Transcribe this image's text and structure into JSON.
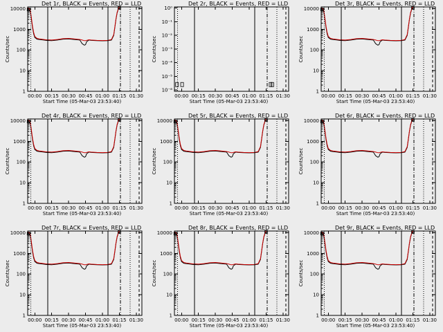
{
  "chart_data": {
    "type": "line",
    "x_tick_labels": [
      "00:00",
      "00:15",
      "00:30",
      "00:45",
      "01:00",
      "01:15",
      "01:30"
    ],
    "xlim_minutes": [
      -6.3,
      95
    ],
    "y_tick_labels": [
      "1",
      "10",
      "100",
      "1000",
      "10000"
    ],
    "ylim": [
      1,
      12000
    ],
    "ylabel": "Counts/sec",
    "xlabel": "Start Time (05-Mar-03 23:53:40)",
    "legend_black": "BLACK = Events",
    "legend_red": "RED = LLD",
    "colors": {
      "events": "#000000",
      "lld": "#cc0000"
    },
    "markers_minutes": {
      "dotted": [
        -3.5,
        84.5
      ],
      "solid": [
        11.5,
        65
      ],
      "dashdot": [
        76
      ],
      "dashed": [
        92.5
      ]
    },
    "x_minutes": [
      -6,
      -5,
      -4,
      -3,
      -2,
      -1,
      0,
      2,
      4,
      6,
      8,
      10,
      15,
      20,
      25,
      30,
      35,
      40,
      42,
      44,
      45,
      46,
      48,
      50,
      55,
      60,
      65,
      68,
      70,
      71,
      72,
      73,
      74,
      75
    ],
    "det2_note": "Det 2r shows only sparse points near bottom; y axis labeled 1e-1 ... 1e-8 style",
    "panels": [
      {
        "title": "Det 1r",
        "events": [
          9000,
          8500,
          7000,
          3000,
          1200,
          600,
          400,
          330,
          320,
          310,
          300,
          290,
          280,
          300,
          330,
          340,
          320,
          300,
          200,
          170,
          180,
          250,
          300,
          290,
          280,
          275,
          280,
          300,
          500,
          1200,
          3000,
          6000,
          9000,
          11000
        ],
        "lld": [
          11000,
          10000,
          8500,
          3500,
          1400,
          700,
          450,
          360,
          340,
          330,
          320,
          310,
          300,
          320,
          350,
          360,
          340,
          320,
          300,
          280,
          280,
          290,
          310,
          300,
          290,
          285,
          290,
          320,
          550,
          1300,
          3200,
          6500,
          9500,
          12000
        ]
      },
      {
        "title": "Det 2r",
        "events": [],
        "lld": []
      },
      {
        "title": "Det 3r",
        "events": [
          9000,
          8500,
          7000,
          3000,
          1200,
          600,
          400,
          330,
          320,
          310,
          300,
          290,
          280,
          300,
          330,
          340,
          320,
          300,
          200,
          170,
          180,
          250,
          300,
          290,
          280,
          275,
          280,
          300,
          500,
          1200,
          3000,
          6000,
          9000,
          11000
        ],
        "lld": [
          11000,
          10000,
          8500,
          3500,
          1400,
          700,
          450,
          360,
          340,
          330,
          320,
          310,
          300,
          320,
          350,
          360,
          340,
          320,
          300,
          280,
          280,
          290,
          310,
          300,
          290,
          285,
          290,
          320,
          550,
          1300,
          3200,
          6500,
          9500,
          12000
        ]
      },
      {
        "title": "Det 4r",
        "events": [
          9000,
          8500,
          7000,
          3000,
          1200,
          600,
          400,
          330,
          320,
          310,
          300,
          290,
          280,
          300,
          330,
          340,
          320,
          300,
          200,
          170,
          180,
          250,
          300,
          290,
          280,
          275,
          280,
          300,
          500,
          1200,
          3000,
          6000,
          9000,
          11000
        ],
        "lld": [
          11000,
          10000,
          8500,
          3500,
          1400,
          700,
          450,
          360,
          340,
          330,
          320,
          310,
          300,
          320,
          350,
          360,
          340,
          320,
          300,
          280,
          280,
          290,
          310,
          300,
          290,
          285,
          290,
          320,
          550,
          1300,
          3200,
          6500,
          9500,
          12000
        ]
      },
      {
        "title": "Det 5r",
        "events": [
          9000,
          8500,
          7000,
          3000,
          1200,
          600,
          400,
          330,
          320,
          310,
          300,
          290,
          280,
          300,
          330,
          340,
          320,
          300,
          200,
          170,
          180,
          250,
          300,
          290,
          280,
          275,
          280,
          300,
          500,
          1200,
          3000,
          6000,
          9000,
          11000
        ],
        "lld": [
          11000,
          10000,
          8500,
          3500,
          1400,
          700,
          450,
          360,
          340,
          330,
          320,
          310,
          300,
          320,
          350,
          360,
          340,
          320,
          300,
          280,
          280,
          290,
          310,
          300,
          290,
          285,
          290,
          320,
          550,
          1300,
          3200,
          6500,
          9500,
          12000
        ]
      },
      {
        "title": "Det 6r",
        "events": [
          9000,
          8500,
          7000,
          3000,
          1200,
          600,
          400,
          330,
          320,
          310,
          300,
          290,
          280,
          300,
          330,
          340,
          320,
          300,
          200,
          170,
          180,
          250,
          300,
          290,
          280,
          275,
          280,
          300,
          500,
          1200,
          3000,
          6000,
          9000,
          11000
        ],
        "lld": [
          11000,
          10000,
          8500,
          3500,
          1400,
          700,
          450,
          360,
          340,
          330,
          320,
          310,
          300,
          320,
          350,
          360,
          340,
          320,
          300,
          280,
          280,
          290,
          310,
          300,
          290,
          285,
          290,
          320,
          550,
          1300,
          3200,
          6500,
          9500,
          12000
        ]
      },
      {
        "title": "Det 7r",
        "events": [
          9000,
          8500,
          7000,
          3000,
          1200,
          600,
          400,
          330,
          320,
          310,
          300,
          290,
          280,
          300,
          330,
          340,
          320,
          300,
          200,
          170,
          180,
          250,
          300,
          290,
          280,
          275,
          280,
          300,
          500,
          1200,
          3000,
          6000,
          9000,
          11000
        ],
        "lld": [
          11000,
          10000,
          8500,
          3500,
          1400,
          700,
          450,
          360,
          340,
          330,
          320,
          310,
          300,
          320,
          350,
          360,
          340,
          320,
          300,
          280,
          280,
          290,
          310,
          300,
          290,
          285,
          290,
          320,
          550,
          1300,
          3200,
          6500,
          9500,
          12000
        ]
      },
      {
        "title": "Det 8r",
        "events": [
          9000,
          8500,
          7000,
          3000,
          1200,
          600,
          400,
          330,
          320,
          310,
          300,
          290,
          280,
          300,
          330,
          340,
          320,
          300,
          200,
          170,
          180,
          250,
          300,
          290,
          280,
          275,
          280,
          300,
          500,
          1200,
          3000,
          6000,
          9000,
          11000
        ],
        "lld": [
          11000,
          10000,
          8500,
          3500,
          1400,
          700,
          450,
          360,
          340,
          330,
          320,
          310,
          300,
          320,
          350,
          360,
          340,
          320,
          300,
          280,
          280,
          290,
          310,
          300,
          290,
          285,
          290,
          320,
          550,
          1300,
          3200,
          6500,
          9500,
          12000
        ]
      },
      {
        "title": "Det 9r",
        "events": [
          9000,
          8500,
          7000,
          3000,
          1200,
          600,
          400,
          330,
          320,
          310,
          300,
          290,
          280,
          300,
          330,
          340,
          320,
          300,
          200,
          170,
          180,
          250,
          300,
          290,
          280,
          275,
          280,
          300,
          500,
          1200,
          3000,
          6000,
          9000,
          11000
        ],
        "lld": [
          11000,
          10000,
          8500,
          3500,
          1400,
          700,
          450,
          360,
          340,
          330,
          320,
          310,
          300,
          320,
          350,
          360,
          340,
          320,
          300,
          280,
          280,
          290,
          310,
          300,
          290,
          285,
          290,
          320,
          550,
          1300,
          3200,
          6500,
          9500,
          12000
        ]
      }
    ],
    "det2_y_tick_labels": [
      "10⁻⁸",
      "10⁻⁵",
      "10⁻⁴",
      "10⁻³",
      "10⁻²",
      "10⁻¹",
      "10⁰"
    ]
  }
}
